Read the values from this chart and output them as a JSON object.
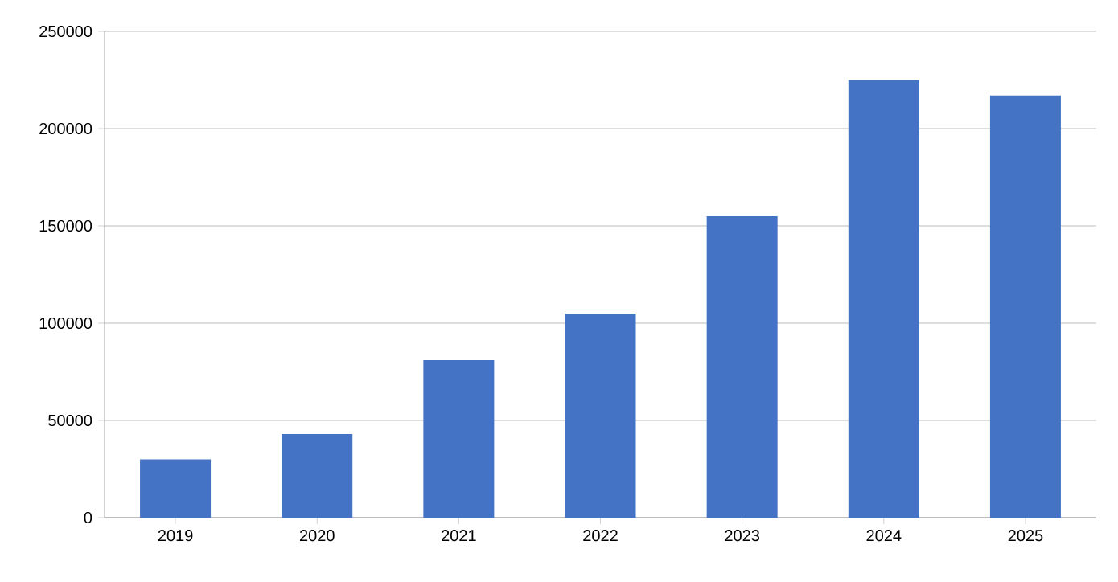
{
  "chart_data": {
    "type": "bar",
    "categories": [
      "2019",
      "2020",
      "2021",
      "2022",
      "2023",
      "2024",
      "2025"
    ],
    "values": [
      30000,
      43000,
      81000,
      105000,
      155000,
      225000,
      217000
    ],
    "color": "#4472c4",
    "ylim": [
      0,
      250000
    ],
    "yticks": [
      0,
      50000,
      100000,
      150000,
      200000,
      250000
    ],
    "grid": "y"
  }
}
